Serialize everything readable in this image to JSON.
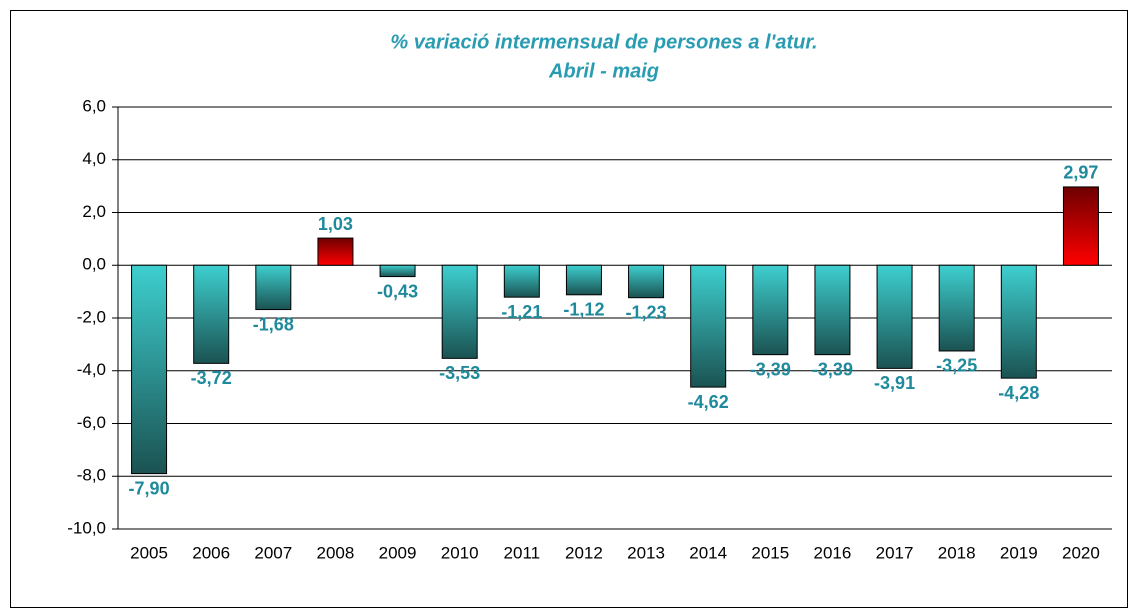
{
  "chart_data": {
    "type": "bar",
    "title": "% variació intermensual de persones a l'atur.",
    "subtitle": "Abril - maig",
    "categories": [
      "2005",
      "2006",
      "2007",
      "2008",
      "2009",
      "2010",
      "2011",
      "2012",
      "2013",
      "2014",
      "2015",
      "2016",
      "2017",
      "2018",
      "2019",
      "2020"
    ],
    "values": [
      -7.9,
      -3.72,
      -1.68,
      1.03,
      -0.43,
      -3.53,
      -1.21,
      -1.12,
      -1.23,
      -4.62,
      -3.39,
      -3.39,
      -3.91,
      -3.25,
      -4.28,
      2.97
    ],
    "value_labels": [
      "-7,90",
      "-3,72",
      "-1,68",
      "1,03",
      "-0,43",
      "-3,53",
      "-1,21",
      "-1,12",
      "-1,23",
      "-4,62",
      "-3,39",
      "-3,39",
      "-3,91",
      "-3,25",
      "-4,28",
      "2,97"
    ],
    "colors": {
      "negative": [
        "#3ecfcf",
        "#1b5252"
      ],
      "positive": [
        "#ff0000",
        "#6e0000"
      ]
    },
    "ylim": [
      -10,
      6
    ],
    "yticks": [
      {
        "value": -10,
        "label": "-10,0"
      },
      {
        "value": -8,
        "label": "-8,0"
      },
      {
        "value": -6,
        "label": "-6,0"
      },
      {
        "value": -4,
        "label": "-4,0"
      },
      {
        "value": -2,
        "label": "-2,0"
      },
      {
        "value": 0,
        "label": "0,0"
      },
      {
        "value": 2,
        "label": "2,0"
      },
      {
        "value": 4,
        "label": "4,0"
      },
      {
        "value": 6,
        "label": "6,0"
      }
    ],
    "grid": true
  }
}
